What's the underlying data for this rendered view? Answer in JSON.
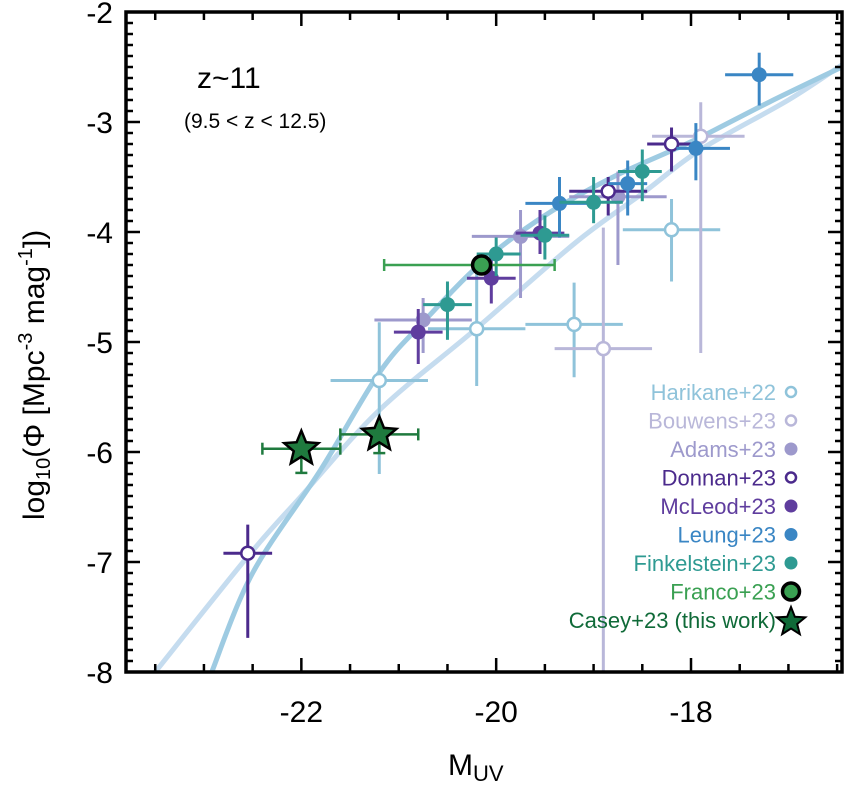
{
  "chart_data": {
    "type": "scatter",
    "title": "",
    "annotation": {
      "main": "z~11",
      "sub": "(9.5 < z < 12.5)"
    },
    "xlabel": {
      "main": "M",
      "sub": "UV"
    },
    "ylabel": {
      "prefix": "log",
      "sub": "10",
      "mid": "(Φ [Mpc",
      "sup1": "-3",
      "mid2": " mag",
      "sup2": "-1",
      "suffix": "])"
    },
    "xlim": [
      -23.8,
      -16.45
    ],
    "ylim": [
      -8.0,
      -2.0
    ],
    "x_ticks": [
      -22,
      -20,
      -18
    ],
    "x_tick_labels": [
      "-22",
      "-20",
      "-18"
    ],
    "y_ticks": [
      -2,
      -3,
      -4,
      -5,
      -6,
      -7,
      -8
    ],
    "y_tick_labels": [
      "-2",
      "-3",
      "-4",
      "-5",
      "-6",
      "-7",
      "-8"
    ],
    "grid": false,
    "legend_position": "bottom-right",
    "curves": [
      {
        "name": "light-fit",
        "color": "#c5dcef",
        "points": [
          [
            -23.5,
            -8.0
          ],
          [
            -22.55,
            -6.95
          ],
          [
            -22.0,
            -6.4
          ],
          [
            -21.2,
            -5.62
          ],
          [
            -20.22,
            -4.89
          ],
          [
            -19.19,
            -4.1
          ],
          [
            -18.5,
            -3.65
          ],
          [
            -17.9,
            -3.25
          ],
          [
            -17.0,
            -2.8
          ],
          [
            -16.45,
            -2.48
          ]
        ]
      },
      {
        "name": "dark-fit",
        "color": "#9ecbe2",
        "points": [
          [
            -22.92,
            -8.0
          ],
          [
            -22.5,
            -7.1
          ],
          [
            -21.8,
            -6.16
          ],
          [
            -21.2,
            -5.28
          ],
          [
            -20.76,
            -4.83
          ],
          [
            -20.15,
            -4.28
          ],
          [
            -19.5,
            -3.85
          ],
          [
            -18.8,
            -3.5
          ],
          [
            -18.0,
            -3.18
          ],
          [
            -17.2,
            -2.82
          ],
          [
            -16.45,
            -2.5
          ]
        ]
      }
    ],
    "series": [
      {
        "name": "Harikane+22",
        "color": "#8fc3da",
        "marker": "open-circle",
        "points": [
          {
            "x": -21.2,
            "y": -5.35,
            "xerr": [
              -21.7,
              -20.7
            ],
            "yerr": [
              -4.82,
              -6.2
            ]
          },
          {
            "x": -20.2,
            "y": -4.88,
            "xerr": [
              -20.7,
              -19.7
            ],
            "yerr": [
              -4.3,
              -5.4
            ]
          },
          {
            "x": -19.2,
            "y": -4.84,
            "xerr": [
              -19.7,
              -18.7
            ],
            "yerr": [
              -4.46,
              -5.32
            ]
          },
          {
            "x": -18.2,
            "y": -3.98,
            "xerr": [
              -18.7,
              -17.7
            ],
            "yerr": [
              -3.7,
              -4.45
            ]
          }
        ]
      },
      {
        "name": "Bouwens+23",
        "color": "#b9b7d9",
        "marker": "open-circle",
        "points": [
          {
            "x": -18.9,
            "y": -5.06,
            "xerr": [
              -19.4,
              -18.4
            ],
            "yerr": [
              -3.96,
              -8.0
            ]
          },
          {
            "x": -17.9,
            "y": -3.13,
            "xerr": [
              -18.4,
              -17.45
            ],
            "yerr": [
              -2.82,
              -5.1
            ]
          }
        ]
      },
      {
        "name": "Adams+23",
        "color": "#9d99cc",
        "marker": "filled-circle",
        "points": [
          {
            "x": -20.75,
            "y": -4.8,
            "xerr": [
              -21.25,
              -20.25
            ],
            "yerr": [
              -4.6,
              -5.1
            ]
          },
          {
            "x": -19.75,
            "y": -4.04,
            "xerr": [
              -20.25,
              -19.25
            ],
            "yerr": [
              -3.8,
              -4.6
            ]
          },
          {
            "x": -18.75,
            "y": -3.68,
            "xerr": [
              -19.25,
              -18.25
            ],
            "yerr": [
              -3.45,
              -4.3
            ]
          }
        ]
      },
      {
        "name": "Donnan+23",
        "color": "#4b2a8c",
        "marker": "open-circle",
        "points": [
          {
            "x": -22.55,
            "y": -6.92,
            "xerr": [
              -22.8,
              -22.3
            ],
            "yerr": [
              -6.66,
              -7.69
            ]
          },
          {
            "x": -18.85,
            "y": -3.63,
            "xerr": [
              -19.25,
              -18.45
            ],
            "yerr": [
              -3.5,
              -3.85
            ]
          },
          {
            "x": -18.2,
            "y": -3.2,
            "xerr": [
              -18.45,
              -17.98
            ],
            "yerr": [
              -3.05,
              -3.45
            ]
          }
        ]
      },
      {
        "name": "McLeod+23",
        "color": "#5f3d9e",
        "marker": "filled-circle",
        "points": [
          {
            "x": -20.8,
            "y": -4.91,
            "xerr": [
              -21.05,
              -20.55
            ],
            "yerr": [
              -4.7,
              -5.2
            ]
          },
          {
            "x": -20.05,
            "y": -4.42,
            "xerr": [
              -20.3,
              -19.8
            ],
            "yerr": [
              -4.2,
              -4.65
            ]
          },
          {
            "x": -19.55,
            "y": -4.01,
            "xerr": [
              -19.8,
              -19.3
            ],
            "yerr": [
              -3.8,
              -4.2
            ]
          }
        ]
      },
      {
        "name": "Leung+23",
        "color": "#3a86c4",
        "marker": "filled-circle",
        "points": [
          {
            "x": -19.35,
            "y": -3.74,
            "xerr": [
              -19.7,
              -19.0
            ],
            "yerr": [
              -3.5,
              -4.05
            ]
          },
          {
            "x": -18.65,
            "y": -3.56,
            "xerr": [
              -18.85,
              -18.45
            ],
            "yerr": [
              -3.35,
              -3.85
            ]
          },
          {
            "x": -17.95,
            "y": -3.24,
            "xerr": [
              -18.15,
              -17.6
            ],
            "yerr": [
              -3.01,
              -3.53
            ]
          },
          {
            "x": -17.3,
            "y": -2.57,
            "xerr": [
              -17.65,
              -16.95
            ],
            "yerr": [
              -2.37,
              -2.85
            ]
          }
        ]
      },
      {
        "name": "Finkelstein+23",
        "color": "#2e9a92",
        "marker": "filled-circle",
        "points": [
          {
            "x": -20.5,
            "y": -4.66,
            "xerr": [
              -20.75,
              -20.25
            ],
            "yerr": [
              -4.45,
              -4.98
            ]
          },
          {
            "x": -20.0,
            "y": -4.2,
            "xerr": [
              -20.2,
              -19.75
            ],
            "yerr": [
              -4.05,
              -4.4
            ]
          },
          {
            "x": -19.5,
            "y": -4.03,
            "xerr": [
              -19.75,
              -19.25
            ],
            "yerr": [
              -3.85,
              -4.25
            ]
          },
          {
            "x": -19.0,
            "y": -3.73,
            "xerr": [
              -19.35,
              -18.7
            ],
            "yerr": [
              -3.5,
              -3.92
            ]
          },
          {
            "x": -18.5,
            "y": -3.45,
            "xerr": [
              -18.75,
              -18.3
            ],
            "yerr": [
              -3.25,
              -3.72
            ]
          }
        ]
      },
      {
        "name": "Franco+23",
        "color": "#3aa052",
        "marker": "filled-circle-black-edge",
        "points": [
          {
            "x": -20.15,
            "y": -4.3,
            "xerr": [
              -21.15,
              -19.4
            ],
            "yerr": [
              -4.25,
              -4.35
            ]
          }
        ]
      },
      {
        "name": "Casey+23 (this work)",
        "color": "#1f7a3e",
        "marker": "star",
        "points": [
          {
            "x": -22.0,
            "y": -5.97,
            "xerr": [
              -22.4,
              -21.6
            ],
            "yerr": [
              -5.85,
              -6.19
            ]
          },
          {
            "x": -21.2,
            "y": -5.84,
            "xerr": [
              -21.6,
              -20.8
            ],
            "yerr": [
              -5.75,
              -6.01
            ]
          }
        ]
      }
    ],
    "legend": [
      {
        "label": "Harikane+22",
        "color": "#8fc3da",
        "marker": "open-circle"
      },
      {
        "label": "Bouwens+23",
        "color": "#b9b7d9",
        "marker": "open-circle"
      },
      {
        "label": "Adams+23",
        "color": "#9d99cc",
        "marker": "filled-circle"
      },
      {
        "label": "Donnan+23",
        "color": "#4b2a8c",
        "marker": "open-circle"
      },
      {
        "label": "McLeod+23",
        "color": "#5f3d9e",
        "marker": "filled-circle"
      },
      {
        "label": "Leung+23",
        "color": "#3a86c4",
        "marker": "filled-circle"
      },
      {
        "label": "Finkelstein+23",
        "color": "#2e9a92",
        "marker": "filled-circle"
      },
      {
        "label": "Franco+23",
        "color": "#3aa052",
        "marker": "filled-circle-black-edge"
      },
      {
        "label": "Casey+23 (this work)",
        "color": "#0f6a38",
        "marker": "star"
      }
    ]
  }
}
